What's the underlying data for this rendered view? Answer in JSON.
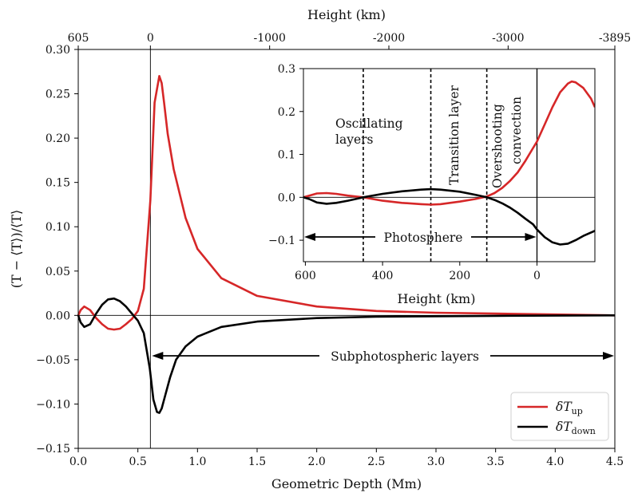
{
  "colors": {
    "up": "#d62728",
    "down": "#000000"
  },
  "chart_data": [
    {
      "type": "line",
      "xlabel": "Geometric Depth (Mm)",
      "ylabel": "(T − ⟨T⟩)/⟨T⟩",
      "xlim": [
        0,
        4.5
      ],
      "ylim": [
        -0.15,
        0.3
      ],
      "xticks": [
        0,
        0.5,
        1.0,
        1.5,
        2.0,
        2.5,
        3.0,
        3.5,
        4.0,
        4.5
      ],
      "xtick_labels": [
        "0.0",
        "0.5",
        "1.0",
        "1.5",
        "2.0",
        "2.5",
        "3.0",
        "3.5",
        "4.0",
        "4.5"
      ],
      "yticks": [
        -0.15,
        -0.1,
        -0.05,
        0,
        0.05,
        0.1,
        0.15,
        0.2,
        0.25,
        0.3
      ],
      "ytick_labels": [
        "−0.15",
        "−0.10",
        "−0.05",
        "0.00",
        "0.05",
        "0.10",
        "0.15",
        "0.20",
        "0.25",
        "0.30"
      ],
      "top_axis": {
        "label": "Height (km)",
        "tick_labels": [
          "605",
          "0",
          "-1000",
          "-2000",
          "-3000",
          "-3895"
        ],
        "tick_depths": [
          0,
          0.605,
          1.605,
          2.605,
          3.605,
          4.5
        ]
      },
      "reference_lines": {
        "zero_y": 0,
        "photosphere_depth": 0.605
      },
      "annotation": "Subphotospheric layers",
      "grid": false,
      "legend": "bottom-right",
      "series": [
        {
          "name": "δT_up",
          "color_key": "up",
          "x": [
            0,
            0.02,
            0.05,
            0.1,
            0.15,
            0.2,
            0.25,
            0.3,
            0.35,
            0.4,
            0.45,
            0.5,
            0.55,
            0.605,
            0.64,
            0.68,
            0.7,
            0.72,
            0.75,
            0.8,
            0.9,
            1.0,
            1.2,
            1.5,
            2.0,
            2.5,
            3.0,
            3.5,
            4.0,
            4.5
          ],
          "y": [
            0,
            0.006,
            0.01,
            0.006,
            -0.003,
            -0.01,
            -0.015,
            -0.016,
            -0.015,
            -0.01,
            -0.004,
            0.005,
            0.03,
            0.13,
            0.24,
            0.27,
            0.262,
            0.24,
            0.205,
            0.165,
            0.11,
            0.075,
            0.042,
            0.022,
            0.01,
            0.005,
            0.003,
            0.002,
            0.001,
            0.0
          ]
        },
        {
          "name": "δT_down",
          "color_key": "down",
          "x": [
            0,
            0.02,
            0.05,
            0.1,
            0.15,
            0.2,
            0.25,
            0.3,
            0.35,
            0.4,
            0.45,
            0.5,
            0.55,
            0.6,
            0.63,
            0.66,
            0.68,
            0.7,
            0.73,
            0.77,
            0.82,
            0.9,
            1.0,
            1.2,
            1.5,
            2.0,
            2.5,
            3.0,
            3.5,
            4.0,
            4.5
          ],
          "y": [
            0,
            -0.008,
            -0.013,
            -0.01,
            0.002,
            0.012,
            0.018,
            0.019,
            0.016,
            0.01,
            0.002,
            -0.006,
            -0.02,
            -0.06,
            -0.095,
            -0.109,
            -0.11,
            -0.105,
            -0.09,
            -0.07,
            -0.05,
            -0.035,
            -0.024,
            -0.013,
            -0.007,
            -0.003,
            -0.0015,
            -0.001,
            -0.0005,
            -0.0002,
            0.0
          ]
        }
      ],
      "legend_entries": [
        {
          "label": "δT",
          "sub": "up",
          "color_key": "up"
        },
        {
          "label": "δT",
          "sub": "down",
          "color_key": "down"
        }
      ]
    },
    {
      "type": "line",
      "xlabel": "Height (km)",
      "xlim": [
        605,
        -150
      ],
      "ylim": [
        -0.15,
        0.3
      ],
      "xticks": [
        600,
        400,
        200,
        0
      ],
      "xtick_labels": [
        "600",
        "400",
        "200",
        "0"
      ],
      "yticks": [
        -0.1,
        0,
        0.1,
        0.2,
        0.3
      ],
      "ytick_labels": [
        "−0.1",
        "0.0",
        "0.1",
        "0.2",
        "0.3"
      ],
      "dashed_lines_km": [
        450,
        275,
        130
      ],
      "solid_line_km": 0,
      "zero_y": 0,
      "annotations": {
        "oscillating": [
          "Oscillating",
          "layers"
        ],
        "transition": "Transition layer",
        "overshooting": [
          "Overshooting",
          "convection"
        ],
        "photosphere": "Photosphere"
      },
      "series": [
        {
          "name": "δT_up",
          "color_key": "up",
          "x": [
            605,
            590,
            570,
            545,
            520,
            490,
            450,
            400,
            350,
            300,
            275,
            250,
            200,
            160,
            130,
            110,
            90,
            70,
            50,
            30,
            10,
            0,
            -20,
            -40,
            -60,
            -80,
            -90,
            -100,
            -120,
            -140,
            -150
          ],
          "y": [
            0,
            0.004,
            0.009,
            0.01,
            0.008,
            0.004,
            0,
            -0.008,
            -0.013,
            -0.016,
            -0.017,
            -0.016,
            -0.01,
            -0.004,
            0.002,
            0.01,
            0.022,
            0.038,
            0.058,
            0.085,
            0.115,
            0.13,
            0.17,
            0.21,
            0.245,
            0.265,
            0.27,
            0.268,
            0.255,
            0.23,
            0.21
          ]
        },
        {
          "name": "δT_down",
          "color_key": "down",
          "x": [
            605,
            590,
            570,
            545,
            520,
            490,
            450,
            400,
            350,
            300,
            275,
            250,
            200,
            160,
            130,
            110,
            90,
            70,
            50,
            30,
            10,
            0,
            -20,
            -40,
            -60,
            -80,
            -100,
            -120,
            -150
          ],
          "y": [
            0,
            -0.004,
            -0.012,
            -0.015,
            -0.013,
            -0.008,
            0,
            0.008,
            0.014,
            0.018,
            0.019,
            0.018,
            0.013,
            0.006,
            0.0,
            -0.006,
            -0.014,
            -0.024,
            -0.036,
            -0.05,
            -0.063,
            -0.075,
            -0.093,
            -0.105,
            -0.11,
            -0.108,
            -0.1,
            -0.09,
            -0.078
          ]
        }
      ]
    }
  ]
}
